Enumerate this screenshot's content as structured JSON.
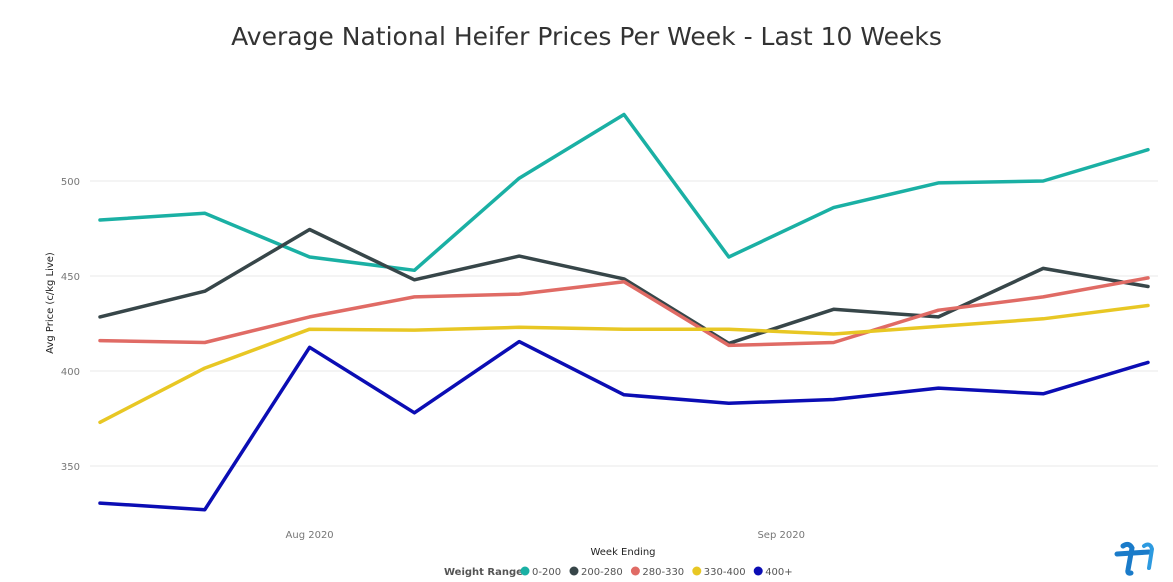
{
  "chart_data": {
    "type": "line",
    "title": "Average National Heifer Prices Per Week - Last 10 Weeks",
    "xlabel": "Week Ending",
    "ylabel": "Avg Price (c/kg Live)",
    "x_ticks": [
      {
        "label": "Aug 2020",
        "index": 2
      },
      {
        "label": "Sep 2020",
        "index": 6.5
      }
    ],
    "yticks": [
      350,
      400,
      450,
      500
    ],
    "ylim": [
      315,
      540
    ],
    "grid": true,
    "legend": {
      "title": "Weight Range",
      "position": "bottom-center"
    },
    "points_count": 11,
    "series": [
      {
        "name": "0-200",
        "color": "#1AB0A4",
        "values": [
          479.5,
          483,
          460,
          453,
          501.5,
          535,
          460,
          486,
          499,
          500,
          516.5
        ]
      },
      {
        "name": "200-280",
        "color": "#374649",
        "values": [
          428.5,
          442,
          474.5,
          448,
          460.5,
          448.5,
          414.5,
          432.5,
          428.5,
          454,
          444.5
        ]
      },
      {
        "name": "280-330",
        "color": "#E06B65",
        "values": [
          416,
          415,
          428.5,
          439,
          440.5,
          447,
          413.5,
          415,
          432,
          439,
          449
        ]
      },
      {
        "name": "330-400",
        "color": "#E8C724",
        "values": [
          373,
          401.5,
          422,
          421.5,
          423,
          422,
          422,
          419.5,
          423.5,
          427.5,
          434.5
        ]
      },
      {
        "name": "400+",
        "color": "#0B0DB4",
        "values": [
          330.5,
          327,
          412.5,
          378,
          415.5,
          387.5,
          383,
          385,
          391,
          388,
          404.5
        ]
      }
    ]
  }
}
